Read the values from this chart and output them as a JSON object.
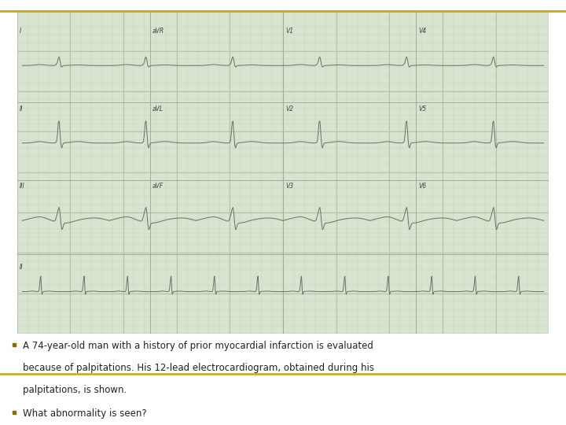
{
  "ecg_bg": "#d8e4d0",
  "ecg_grid_minor": "#c0d0b8",
  "ecg_grid_major": "#b0c4a8",
  "page_bg": "#ffffff",
  "top_line_color": "#c8a818",
  "gold_line_color": "#c8a818",
  "bullet_color": "#8B6914",
  "text_color": "#222222",
  "ecg_trace_color": "#6a7a6a",
  "text_line1": "A 74-year-old man with a history of prior myocardial infarction is evaluated",
  "text_line2": "because of palpitations. His 12-lead electrocardiogram, obtained during his",
  "text_line3": "palpitations, is shown.",
  "text_line4": "What abnormality is seen?",
  "font_size": 8.5
}
